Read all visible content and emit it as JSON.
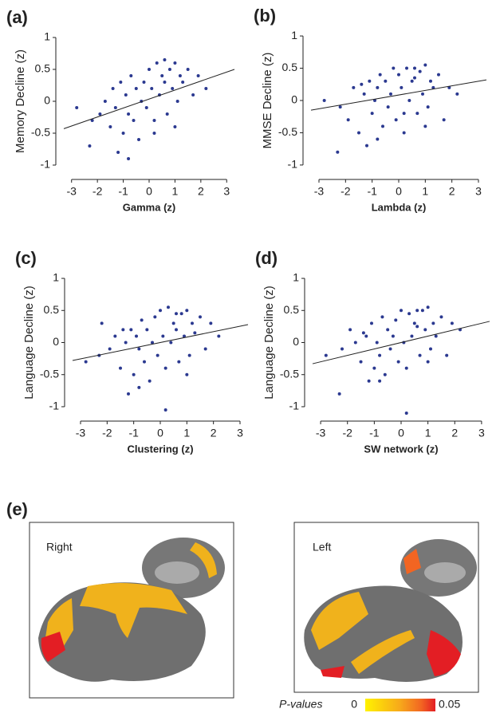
{
  "chart_data": [
    {
      "type": "scatter",
      "panel_label": "(a)",
      "x_label": "Gamma (z)",
      "y_label": "Memory Decline (z)",
      "color": "#2b3990",
      "xlim": [
        -3.3,
        3.3
      ],
      "ylim": [
        -1.1,
        1.1
      ],
      "xticks": [
        -3,
        -2,
        -1,
        0,
        1,
        2,
        3
      ],
      "yticks": [
        -1,
        -0.5,
        0,
        0.5,
        1
      ],
      "x": [
        -2.8,
        -2.3,
        -2.2,
        -1.9,
        -1.7,
        -1.5,
        -1.3,
        -1.2,
        -1.1,
        -1.0,
        -0.9,
        -0.8,
        -0.7,
        -0.6,
        -0.5,
        -0.4,
        -0.3,
        -0.2,
        -0.1,
        0,
        0.1,
        0.2,
        0.3,
        0.4,
        0.5,
        0.6,
        0.7,
        0.8,
        0.9,
        1.0,
        1.1,
        1.2,
        1.3,
        1.5,
        1.7,
        1.9,
        2.2,
        -0.8,
        0.2,
        0.6,
        -1.4,
        1.0
      ],
      "y": [
        -0.1,
        -0.7,
        -0.3,
        -0.2,
        0.0,
        -0.4,
        -0.1,
        -0.8,
        0.3,
        -0.5,
        0.1,
        -0.2,
        0.4,
        -0.3,
        0.2,
        -0.6,
        0.0,
        0.3,
        -0.1,
        0.5,
        0.2,
        -0.3,
        0.6,
        0.1,
        0.4,
        0.3,
        -0.2,
        0.5,
        0.2,
        0.6,
        0.0,
        0.4,
        0.3,
        0.5,
        0.1,
        0.4,
        0.2,
        -0.9,
        -0.5,
        0.65,
        0.2,
        -0.4
      ],
      "fit": {
        "x": [
          -3.3,
          3.3
        ],
        "y": [
          -0.43,
          0.5
        ]
      }
    },
    {
      "type": "scatter",
      "panel_label": "(b)",
      "x_label": "Lambda (z)",
      "y_label": "MMSE Decline (z)",
      "color": "#2b3990",
      "xlim": [
        -3.3,
        3.3
      ],
      "ylim": [
        -1.1,
        1.1
      ],
      "xticks": [
        -3,
        -2,
        -1,
        0,
        1,
        2,
        3
      ],
      "yticks": [
        -1,
        -0.5,
        0,
        0.5,
        1
      ],
      "x": [
        -2.8,
        -2.3,
        -2.2,
        -1.9,
        -1.7,
        -1.5,
        -1.3,
        -1.2,
        -1.1,
        -1.0,
        -0.9,
        -0.8,
        -0.7,
        -0.6,
        -0.5,
        -0.4,
        -0.3,
        -0.2,
        -0.1,
        0,
        0.1,
        0.2,
        0.3,
        0.4,
        0.5,
        0.6,
        0.7,
        0.8,
        0.9,
        1.0,
        1.1,
        1.2,
        1.3,
        1.5,
        1.7,
        1.9,
        2.2,
        -0.8,
        0.2,
        0.6,
        -1.4,
        1.0
      ],
      "y": [
        0.0,
        -0.8,
        -0.1,
        -0.3,
        0.2,
        -0.5,
        0.1,
        -0.7,
        0.3,
        -0.2,
        0.0,
        0.2,
        0.4,
        -0.4,
        0.3,
        -0.1,
        0.1,
        0.5,
        -0.3,
        0.4,
        0.2,
        -0.5,
        0.5,
        0.0,
        0.3,
        0.35,
        -0.2,
        0.45,
        0.1,
        0.55,
        -0.1,
        0.3,
        0.2,
        0.4,
        -0.3,
        0.2,
        0.1,
        -0.6,
        -0.2,
        0.5,
        0.25,
        -0.4
      ],
      "fit": {
        "x": [
          -3.3,
          3.3
        ],
        "y": [
          -0.15,
          0.32
        ]
      }
    },
    {
      "type": "scatter",
      "panel_label": "(c)",
      "x_label": "Clustering (z)",
      "y_label": "Language Decline (z)",
      "color": "#2b3990",
      "xlim": [
        -3.3,
        3.3
      ],
      "ylim": [
        -1.1,
        1.1
      ],
      "xticks": [
        -3,
        -2,
        -1,
        0,
        1,
        2,
        3
      ],
      "yticks": [
        -1,
        -0.5,
        0,
        0.5,
        1
      ],
      "x": [
        -2.8,
        -2.3,
        -2.2,
        -1.9,
        -1.7,
        -1.5,
        -1.3,
        -1.2,
        -1.1,
        -1.0,
        -0.9,
        -0.8,
        -0.7,
        -0.6,
        -0.5,
        -0.4,
        -0.3,
        -0.2,
        -0.1,
        0,
        0.1,
        0.2,
        0.3,
        0.4,
        0.5,
        0.6,
        0.7,
        0.8,
        0.9,
        1.0,
        1.1,
        1.2,
        1.3,
        1.5,
        1.7,
        1.9,
        2.2,
        -0.8,
        0.2,
        0.6,
        -1.4,
        1.0
      ],
      "y": [
        -0.3,
        -0.2,
        0.3,
        -0.1,
        0.1,
        -0.4,
        0.0,
        -0.8,
        0.2,
        -0.5,
        0.1,
        -0.1,
        0.35,
        -0.3,
        0.2,
        -0.6,
        0.0,
        0.4,
        -0.2,
        0.5,
        0.1,
        -0.4,
        0.55,
        0.0,
        0.3,
        0.2,
        -0.3,
        0.45,
        0.1,
        0.5,
        -0.2,
        0.3,
        0.15,
        0.4,
        -0.1,
        0.3,
        0.1,
        -0.7,
        -1.05,
        0.45,
        0.2,
        -0.5
      ],
      "fit": {
        "x": [
          -3.3,
          3.3
        ],
        "y": [
          -0.28,
          0.28
        ]
      }
    },
    {
      "type": "scatter",
      "panel_label": "(d)",
      "x_label": "SW network (z)",
      "y_label": "Language Decline (z)",
      "color": "#2b3990",
      "xlim": [
        -3.3,
        3.3
      ],
      "ylim": [
        -1.1,
        1.1
      ],
      "xticks": [
        -3,
        -2,
        -1,
        0,
        1,
        2,
        3
      ],
      "yticks": [
        -1,
        -0.5,
        0,
        0.5,
        1
      ],
      "x": [
        -2.8,
        -2.3,
        -2.2,
        -1.9,
        -1.7,
        -1.5,
        -1.3,
        -1.2,
        -1.1,
        -1.0,
        -0.9,
        -0.8,
        -0.7,
        -0.6,
        -0.5,
        -0.4,
        -0.3,
        -0.2,
        -0.1,
        0,
        0.1,
        0.2,
        0.3,
        0.4,
        0.5,
        0.6,
        0.7,
        0.8,
        0.9,
        1.0,
        1.1,
        1.2,
        1.3,
        1.5,
        1.7,
        1.9,
        2.2,
        -0.8,
        0.2,
        0.6,
        -1.4,
        1.0
      ],
      "y": [
        -0.2,
        -0.8,
        -0.1,
        0.2,
        0.0,
        -0.3,
        0.1,
        -0.6,
        0.3,
        -0.4,
        0.0,
        -0.2,
        0.4,
        -0.5,
        0.2,
        -0.1,
        0.1,
        0.35,
        -0.3,
        0.5,
        0.0,
        -0.4,
        0.45,
        0.1,
        0.3,
        0.25,
        -0.2,
        0.5,
        0.2,
        0.55,
        -0.1,
        0.3,
        0.1,
        0.4,
        -0.2,
        0.3,
        0.2,
        -0.6,
        -1.1,
        0.5,
        0.15,
        -0.3
      ],
      "fit": {
        "x": [
          -3.3,
          3.3
        ],
        "y": [
          -0.33,
          0.33
        ]
      }
    }
  ],
  "brain_panel": {
    "panel_label": "(e)",
    "right_label": "Right",
    "left_label": "Left",
    "legend_title": "P-values",
    "scale_ticks": [
      0,
      0.05
    ]
  }
}
